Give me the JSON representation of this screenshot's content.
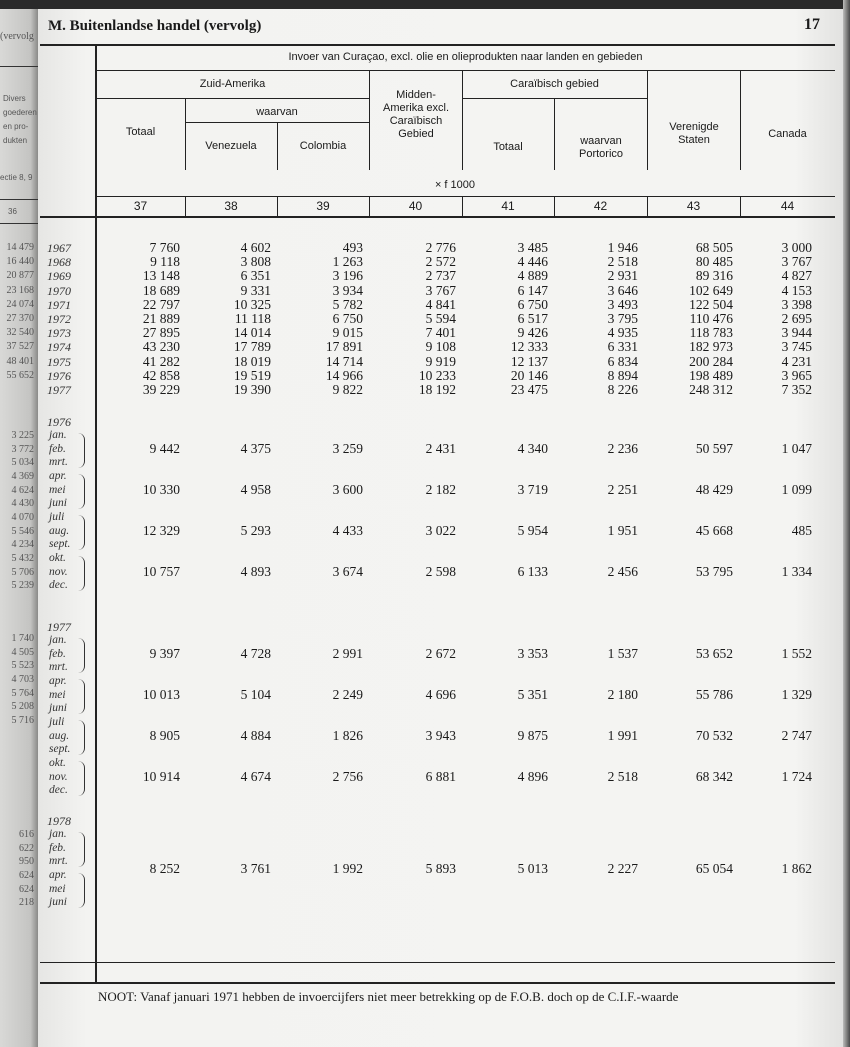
{
  "header": {
    "section_title": "M. Buitenlandse handel (vervolg)",
    "page_number": "17"
  },
  "table": {
    "title": "Invoer van Curaçao, excl. olie en olieprodukten naar landen en gebieden",
    "zuid_amerika": "Zuid-Amerika",
    "waarvan": "waarvan",
    "totaal": "Totaal",
    "venezuela": "Venezuela",
    "colombia": "Colombia",
    "midden_amerika": "Midden-Amerika excl. Caraïbisch Gebied",
    "caraibisch_gebied": "Caraïbisch gebied",
    "carib_totaal": "Totaal",
    "portorico": "waarvan Portorico",
    "verenigde_staten": "Verenigde Staten",
    "canada": "Canada",
    "unit": "× f 1000",
    "column_numbers": [
      "37",
      "38",
      "39",
      "40",
      "41",
      "42",
      "43",
      "44"
    ]
  },
  "annual": [
    {
      "year": "1967",
      "values": [
        "7 760",
        "4 602",
        "493",
        "2 776",
        "3 485",
        "1 946",
        "68 505",
        "3 000"
      ]
    },
    {
      "year": "1968",
      "values": [
        "9 118",
        "3 808",
        "1 263",
        "2 572",
        "4 446",
        "2 518",
        "80 485",
        "3 767"
      ]
    },
    {
      "year": "1969",
      "values": [
        "13 148",
        "6 351",
        "3 196",
        "2 737",
        "4 889",
        "2 931",
        "89 316",
        "4 827"
      ]
    },
    {
      "year": "1970",
      "values": [
        "18 689",
        "9 331",
        "3 934",
        "3 767",
        "6 147",
        "3 646",
        "102 649",
        "4 153"
      ]
    },
    {
      "year": "1971",
      "values": [
        "22 797",
        "10 325",
        "5 782",
        "4 841",
        "6 750",
        "3 493",
        "122 504",
        "3 398"
      ]
    },
    {
      "year": "1972",
      "values": [
        "21 889",
        "11 118",
        "6 750",
        "5 594",
        "6 517",
        "3 795",
        "110 476",
        "2 695"
      ]
    },
    {
      "year": "1973",
      "values": [
        "27 895",
        "14 014",
        "9 015",
        "7 401",
        "9 426",
        "4 935",
        "118 783",
        "3 944"
      ]
    },
    {
      "year": "1974",
      "values": [
        "43 230",
        "17 789",
        "17 891",
        "9 108",
        "12 333",
        "6 331",
        "182 973",
        "3 745"
      ]
    },
    {
      "year": "1975",
      "values": [
        "41 282",
        "18 019",
        "14 714",
        "9 919",
        "12 137",
        "6 834",
        "200 284",
        "4 231"
      ]
    },
    {
      "year": "1976",
      "values": [
        "42 858",
        "19 519",
        "14 966",
        "10 233",
        "20 146",
        "8 894",
        "198 489",
        "3 965"
      ]
    },
    {
      "year": "1977",
      "values": [
        "39 229",
        "19 390",
        "9 822",
        "18 192",
        "23 475",
        "8 226",
        "248 312",
        "7 352"
      ]
    }
  ],
  "quarterly": [
    {
      "year": "1976",
      "periods": [
        {
          "months": [
            "jan.",
            "feb.",
            "mrt."
          ],
          "values": [
            "9 442",
            "4 375",
            "3 259",
            "2 431",
            "4 340",
            "2 236",
            "50 597",
            "1 047"
          ]
        },
        {
          "months": [
            "apr.",
            "mei",
            "juni"
          ],
          "values": [
            "10 330",
            "4 958",
            "3 600",
            "2 182",
            "3 719",
            "2 251",
            "48 429",
            "1 099"
          ]
        },
        {
          "months": [
            "juli",
            "aug.",
            "sept."
          ],
          "values": [
            "12 329",
            "5 293",
            "4 433",
            "3 022",
            "5 954",
            "1 951",
            "45 668",
            "485"
          ]
        },
        {
          "months": [
            "okt.",
            "nov.",
            "dec."
          ],
          "values": [
            "10 757",
            "4 893",
            "3 674",
            "2 598",
            "6 133",
            "2 456",
            "53 795",
            "1 334"
          ]
        }
      ]
    },
    {
      "year": "1977",
      "periods": [
        {
          "months": [
            "jan.",
            "feb.",
            "mrt."
          ],
          "values": [
            "9 397",
            "4 728",
            "2 991",
            "2 672",
            "3 353",
            "1 537",
            "53 652",
            "1 552"
          ]
        },
        {
          "months": [
            "apr.",
            "mei",
            "juni"
          ],
          "values": [
            "10 013",
            "5 104",
            "2 249",
            "4 696",
            "5 351",
            "2 180",
            "55 786",
            "1 329"
          ]
        },
        {
          "months": [
            "juli",
            "aug.",
            "sept."
          ],
          "values": [
            "8 905",
            "4 884",
            "1 826",
            "3 943",
            "9 875",
            "1 991",
            "70 532",
            "2 747"
          ]
        },
        {
          "months": [
            "okt.",
            "nov.",
            "dec."
          ],
          "values": [
            "10 914",
            "4 674",
            "2 756",
            "6 881",
            "4 896",
            "2 518",
            "68 342",
            "1 724"
          ]
        }
      ]
    },
    {
      "year": "1978",
      "periods": [
        {
          "months": [
            "jan.",
            "feb.",
            "mrt.",
            "apr.",
            "mei",
            "juni"
          ],
          "values": [
            "8 252",
            "3 761",
            "1 992",
            "5 893",
            "5 013",
            "2 227",
            "65 054",
            "1 862"
          ]
        }
      ]
    }
  ],
  "note": "NOOT:  Vanaf januari 1971 hebben de invoercijfers niet meer betrekking op de F.O.B. doch op de C.I.F.-waarde",
  "left_margin": {
    "header_fragment": "(vervolg",
    "column_heading": [
      "Divers",
      "goederen",
      "en pro-",
      "dukten"
    ],
    "section_fragment": "ectie 8, 9",
    "column_number": "36",
    "annual_fragments": [
      "14 479",
      "16 440",
      "20 877",
      "23 168",
      "24 074",
      "27 370",
      "32 540",
      "37 527",
      "48 401",
      "55 652"
    ],
    "q1976_fragments": [
      "3 225",
      "3 772",
      "5 034",
      "4 369",
      "4 624",
      "4 430",
      "4 070",
      "5 546",
      "4 234",
      "5 432",
      "5 706",
      "5 239"
    ],
    "q1977_fragments": [
      "1 740",
      "4 505",
      "5 523",
      "4 703",
      "5 764",
      "5 208",
      "5 716"
    ],
    "q1978_fragments": [
      "616",
      "622",
      "950",
      "624",
      "624",
      "218"
    ]
  }
}
